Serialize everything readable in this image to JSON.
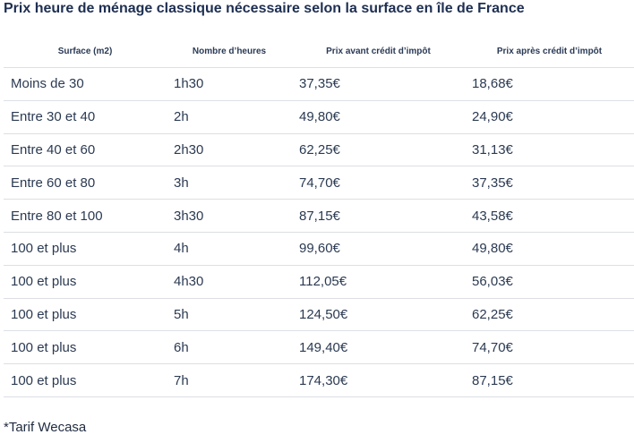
{
  "title": "Prix heure de ménage classique nécessaire selon la surface en île de France",
  "table": {
    "headers": [
      "Surface (m2)",
      "Nombre d’heures",
      "Prix avant crédit d’impôt",
      "Prix après crédit d’impôt"
    ],
    "rows": [
      [
        "Moins de 30",
        "1h30",
        "37,35€",
        "18,68€"
      ],
      [
        "Entre 30 et 40",
        "2h",
        "49,80€",
        "24,90€"
      ],
      [
        "Entre 40 et 60",
        "2h30",
        "62,25€",
        "31,13€"
      ],
      [
        "Entre 60 et 80",
        "3h",
        "74,70€",
        "37,35€"
      ],
      [
        "Entre 80 et 100",
        "3h30",
        "87,15€",
        "43,58€"
      ],
      [
        "100 et plus",
        "4h",
        "99,60€",
        "49,80€"
      ],
      [
        "100 et plus",
        "4h30",
        "112,05€",
        "56,03€"
      ],
      [
        "100 et plus",
        "5h",
        "124,50€",
        "62,25€"
      ],
      [
        "100 et plus",
        "6h",
        "149,40€",
        "74,70€"
      ],
      [
        "100 et plus",
        "7h",
        "174,30€",
        "87,15€"
      ]
    ]
  },
  "footnote": "*Tarif Wecasa"
}
